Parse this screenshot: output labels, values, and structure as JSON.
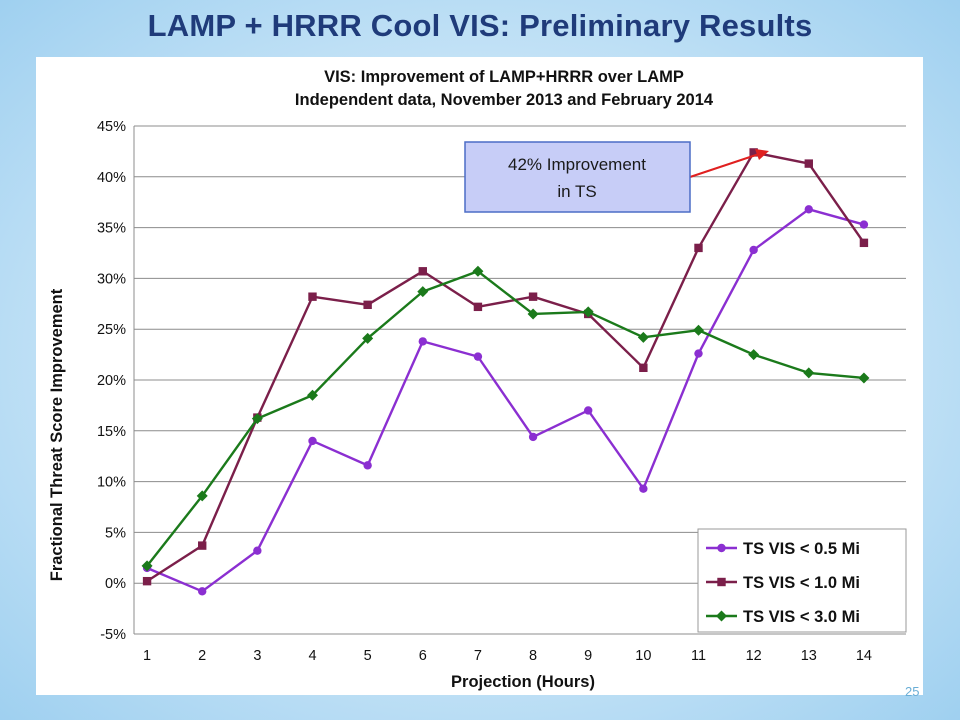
{
  "slide": {
    "title": "LAMP + HRRR Cool VIS: Preliminary Results",
    "page_number": "25"
  },
  "colors": {
    "title": "#1f3b7a",
    "series_purple": "#8b2fd1",
    "series_maroon": "#7b1f4a",
    "series_green": "#1b7a1b",
    "callout_fill": "#c7cdf7",
    "callout_border": "#4c6dc6",
    "arrow": "#e02020"
  },
  "annotation": {
    "text_line1": "42% Improvement",
    "text_line2": "in TS"
  },
  "chart_data": {
    "type": "line",
    "title_line1": "VIS: Improvement of LAMP+HRRR over LAMP",
    "title_line2": "Independent data, November 2013 and February 2014",
    "xlabel": "Projection (Hours)",
    "ylabel": "Fractional Threat Score Improvement",
    "x": [
      1,
      2,
      3,
      4,
      5,
      6,
      7,
      8,
      9,
      10,
      11,
      12,
      13,
      14
    ],
    "ylim": [
      -5,
      45
    ],
    "y_ticks": [
      -5,
      0,
      5,
      10,
      15,
      20,
      25,
      30,
      35,
      40,
      45
    ],
    "y_tick_labels": [
      "-5%",
      "0%",
      "5%",
      "10%",
      "15%",
      "20%",
      "25%",
      "30%",
      "35%",
      "40%",
      "45%"
    ],
    "x_tick_labels": [
      "1",
      "2",
      "3",
      "4",
      "5",
      "6",
      "7",
      "8",
      "9",
      "10",
      "11",
      "12",
      "13",
      "14"
    ],
    "grid": "horizontal",
    "legend_position": "bottom-right",
    "series": [
      {
        "name": "TS VIS < 0.5 Mi",
        "marker": "circle",
        "color": "#8b2fd1",
        "values": [
          1.5,
          -0.8,
          3.2,
          14.0,
          11.6,
          23.8,
          22.3,
          14.4,
          17.0,
          9.3,
          22.6,
          32.8,
          36.8,
          35.3
        ]
      },
      {
        "name": "TS VIS < 1.0 Mi",
        "marker": "square",
        "color": "#7b1f4a",
        "values": [
          0.2,
          3.7,
          16.3,
          28.2,
          27.4,
          30.7,
          27.2,
          28.2,
          26.5,
          21.2,
          33.0,
          42.4,
          41.3,
          33.5
        ]
      },
      {
        "name": "TS VIS < 3.0 Mi",
        "marker": "diamond",
        "color": "#1b7a1b",
        "values": [
          1.7,
          8.6,
          16.2,
          18.5,
          24.1,
          28.7,
          30.7,
          26.5,
          26.7,
          24.2,
          24.9,
          22.5,
          20.7,
          20.2
        ]
      }
    ]
  }
}
